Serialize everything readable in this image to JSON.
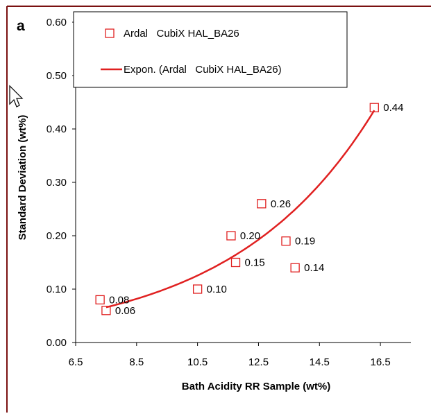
{
  "panel_label": "a",
  "chart_data": {
    "type": "scatter",
    "xlabel": "Bath Acidity RR Sample (wt%)",
    "ylabel": "Standard Deviation (wt%)",
    "xlim": [
      6.5,
      17.5
    ],
    "ylim": [
      0.0,
      0.6
    ],
    "x_ticks": [
      "6.5",
      "8.5",
      "10.5",
      "12.5",
      "14.5",
      "16.5"
    ],
    "y_ticks": [
      "0.00",
      "0.10",
      "0.20",
      "0.30",
      "0.40",
      "0.50",
      "0.60"
    ],
    "grid": false,
    "legend_position": "top-left",
    "series": [
      {
        "name": "Ardal   CubiX HAL_BA26",
        "kind": "scatter",
        "marker": "open-square",
        "color": "#e02020",
        "points": [
          {
            "x": 7.3,
            "y": 0.08,
            "label": "0.08"
          },
          {
            "x": 7.5,
            "y": 0.06,
            "label": "0.06"
          },
          {
            "x": 10.5,
            "y": 0.1,
            "label": "0.10"
          },
          {
            "x": 11.6,
            "y": 0.2,
            "label": "0.20"
          },
          {
            "x": 11.75,
            "y": 0.15,
            "label": "0.15"
          },
          {
            "x": 12.6,
            "y": 0.26,
            "label": "0.26"
          },
          {
            "x": 13.4,
            "y": 0.19,
            "label": "0.19"
          },
          {
            "x": 13.7,
            "y": 0.14,
            "label": "0.14"
          },
          {
            "x": 16.3,
            "y": 0.44,
            "label": "0.44"
          }
        ]
      },
      {
        "name": "Expon. (Ardal   CubiX HAL_BA26)",
        "kind": "trendline",
        "fit": "exponential",
        "color": "#e02020",
        "x_range": [
          7.5,
          16.3
        ],
        "y_at_start": 0.066,
        "y_at_end": 0.435
      }
    ]
  },
  "colors": {
    "frame": "#7a1010",
    "axis": "#000000",
    "series": "#e02020"
  },
  "icons": [
    "mouse-cursor-icon"
  ]
}
